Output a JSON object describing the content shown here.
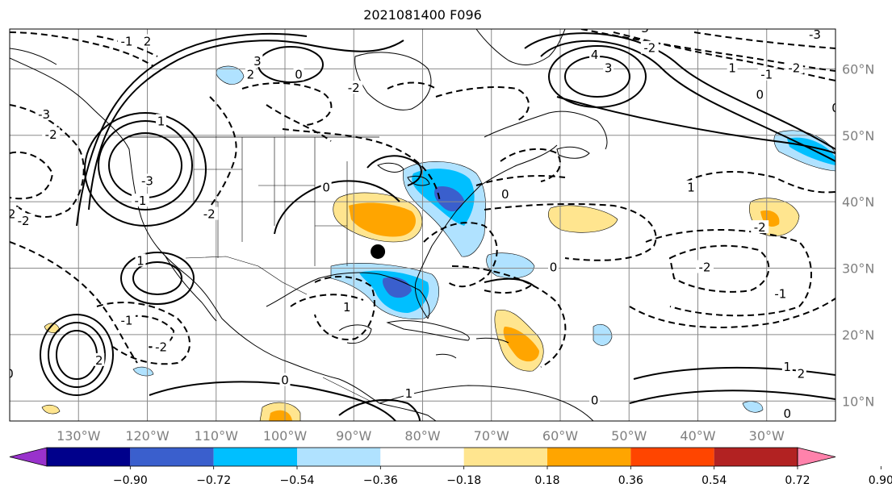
{
  "title": "2021081400 F096",
  "map": {
    "lon_range": [
      -140,
      -20
    ],
    "lat_range": [
      7,
      66
    ],
    "lon_ticks": [
      -130,
      -120,
      -110,
      -100,
      -90,
      -80,
      -70,
      -60,
      -50,
      -40,
      -30
    ],
    "lon_labels": [
      "130°W",
      "120°W",
      "110°W",
      "100°W",
      "90°W",
      "80°W",
      "70°W",
      "60°W",
      "50°W",
      "40°W",
      "30°W"
    ],
    "lat_ticks": [
      10,
      20,
      30,
      40,
      50,
      60
    ],
    "lat_labels": [
      "10°N",
      "20°N",
      "30°N",
      "40°N",
      "50°N",
      "60°N"
    ],
    "grid": true,
    "marker": {
      "name": "storm-center",
      "lon": -86.5,
      "lat": 32.5
    }
  },
  "contour_labels": [
    {
      "text": "-2",
      "lon": -134,
      "lat": 50
    },
    {
      "text": "-3",
      "lon": -135,
      "lat": 53
    },
    {
      "text": "-2",
      "lon": -138,
      "lat": 37
    },
    {
      "text": "-1",
      "lon": -123,
      "lat": 64
    },
    {
      "text": "2",
      "lon": -120,
      "lat": 64
    },
    {
      "text": "1",
      "lon": -118,
      "lat": 52
    },
    {
      "text": "-3",
      "lon": -120,
      "lat": 43
    },
    {
      "text": "-1",
      "lon": -121,
      "lat": 40
    },
    {
      "text": "3",
      "lon": -104,
      "lat": 61
    },
    {
      "text": "2",
      "lon": -105,
      "lat": 59
    },
    {
      "text": "0",
      "lon": -98,
      "lat": 59
    },
    {
      "text": "-2",
      "lon": -90,
      "lat": 57
    },
    {
      "text": "0",
      "lon": -94,
      "lat": 42
    },
    {
      "text": "-2",
      "lon": -111,
      "lat": 38
    },
    {
      "text": "1",
      "lon": -121,
      "lat": 31
    },
    {
      "text": "2",
      "lon": -127,
      "lat": 16
    },
    {
      "text": "-2",
      "lon": -118,
      "lat": 18
    },
    {
      "text": "-1",
      "lon": -123,
      "lat": 22
    },
    {
      "text": "-2",
      "lon": -140,
      "lat": 38
    },
    {
      "text": "0",
      "lon": -140,
      "lat": 14
    },
    {
      "text": "1",
      "lon": -91,
      "lat": 24
    },
    {
      "text": "0",
      "lon": -100,
      "lat": 13
    },
    {
      "text": "1",
      "lon": -82,
      "lat": 11
    },
    {
      "text": "0",
      "lon": -68,
      "lat": 41
    },
    {
      "text": "0",
      "lon": -61,
      "lat": 30
    },
    {
      "text": "1",
      "lon": -41,
      "lat": 42
    },
    {
      "text": "-2",
      "lon": -39,
      "lat": 30
    },
    {
      "text": "-2",
      "lon": -31,
      "lat": 36
    },
    {
      "text": "-1",
      "lon": -28,
      "lat": 26
    },
    {
      "text": "1",
      "lon": -27,
      "lat": 15
    },
    {
      "text": "2",
      "lon": -25,
      "lat": 14
    },
    {
      "text": "0",
      "lon": -27,
      "lat": 8
    },
    {
      "text": "0",
      "lon": -55,
      "lat": 10
    },
    {
      "text": "4",
      "lon": -55,
      "lat": 62
    },
    {
      "text": "3",
      "lon": -53,
      "lat": 60
    },
    {
      "text": "-3",
      "lon": -23,
      "lat": 65
    },
    {
      "text": "-2",
      "lon": -26,
      "lat": 60
    },
    {
      "text": "-1",
      "lon": -30,
      "lat": 59
    },
    {
      "text": "0",
      "lon": -31,
      "lat": 56
    },
    {
      "text": "1",
      "lon": -35,
      "lat": 60
    },
    {
      "text": "0",
      "lon": -20,
      "lat": 54
    },
    {
      "text": "-3",
      "lon": -48,
      "lat": 66
    },
    {
      "text": "-2",
      "lon": -47,
      "lat": 63
    }
  ],
  "colorbar": {
    "ticks": [
      "−0.90",
      "−0.72",
      "−0.54",
      "−0.36",
      "−0.18",
      "0.18",
      "0.36",
      "0.54",
      "0.72",
      "0.90"
    ],
    "colors": [
      "#9932cc",
      "#00008b",
      "#3a5fcd",
      "#00bfff",
      "#b0e2ff",
      "#ffffff",
      "#ffe58f",
      "#ffa500",
      "#ff4500",
      "#b22222",
      "#ff82ab"
    ]
  }
}
